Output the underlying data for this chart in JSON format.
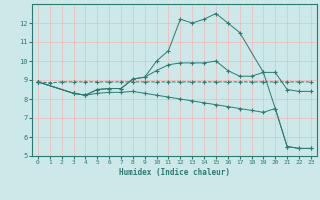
{
  "xlabel": "Humidex (Indice chaleur)",
  "xlim": [
    -0.5,
    23.5
  ],
  "ylim": [
    5,
    13
  ],
  "yticks": [
    5,
    6,
    7,
    8,
    9,
    10,
    11,
    12
  ],
  "xticks": [
    0,
    1,
    2,
    3,
    4,
    5,
    6,
    7,
    8,
    9,
    10,
    11,
    12,
    13,
    14,
    15,
    16,
    17,
    18,
    19,
    20,
    21,
    22,
    23
  ],
  "bg_color": "#cce8e8",
  "line_color": "#2d7a72",
  "grid_major_color": "#f5b8b8",
  "grid_minor_color": "#dff0f0",
  "series": [
    {
      "x": [
        0,
        1,
        2,
        3,
        4,
        5,
        6,
        7,
        8,
        9,
        10,
        11,
        12,
        13,
        14,
        15,
        16,
        17,
        18,
        19,
        20,
        21,
        22,
        23
      ],
      "y": [
        8.9,
        8.85,
        8.9,
        8.9,
        8.9,
        8.9,
        8.9,
        8.9,
        8.9,
        8.9,
        8.9,
        8.9,
        8.9,
        8.9,
        8.9,
        8.9,
        8.9,
        8.9,
        8.9,
        8.9,
        8.9,
        8.9,
        8.9,
        8.9
      ],
      "marker": "+"
    },
    {
      "x": [
        0,
        3,
        4,
        5,
        6,
        7,
        8,
        9,
        10,
        11,
        12,
        13,
        14,
        15,
        16,
        17,
        19,
        20,
        21,
        22,
        23
      ],
      "y": [
        8.9,
        8.3,
        8.2,
        8.5,
        8.55,
        8.55,
        9.05,
        9.15,
        10.0,
        10.55,
        12.2,
        12.0,
        12.2,
        12.5,
        12.0,
        11.5,
        9.4,
        7.5,
        5.5,
        5.4,
        5.4
      ],
      "marker": "+"
    },
    {
      "x": [
        0,
        3,
        4,
        5,
        6,
        7,
        8,
        9,
        10,
        11,
        12,
        13,
        14,
        15,
        16,
        17,
        18,
        19,
        20,
        21,
        22,
        23
      ],
      "y": [
        8.9,
        8.3,
        8.2,
        8.5,
        8.55,
        8.55,
        9.05,
        9.15,
        9.5,
        9.8,
        9.9,
        9.9,
        9.9,
        10.0,
        9.5,
        9.2,
        9.2,
        9.4,
        9.4,
        8.5,
        8.4,
        8.4
      ],
      "marker": "+"
    },
    {
      "x": [
        0,
        3,
        4,
        5,
        6,
        7,
        8,
        9,
        10,
        11,
        12,
        13,
        14,
        15,
        16,
        17,
        18,
        19,
        20,
        21,
        22,
        23
      ],
      "y": [
        8.9,
        8.3,
        8.2,
        8.3,
        8.35,
        8.35,
        8.4,
        8.3,
        8.2,
        8.1,
        8.0,
        7.9,
        7.8,
        7.7,
        7.6,
        7.5,
        7.4,
        7.3,
        7.5,
        5.5,
        5.4,
        5.4
      ],
      "marker": "+"
    }
  ]
}
